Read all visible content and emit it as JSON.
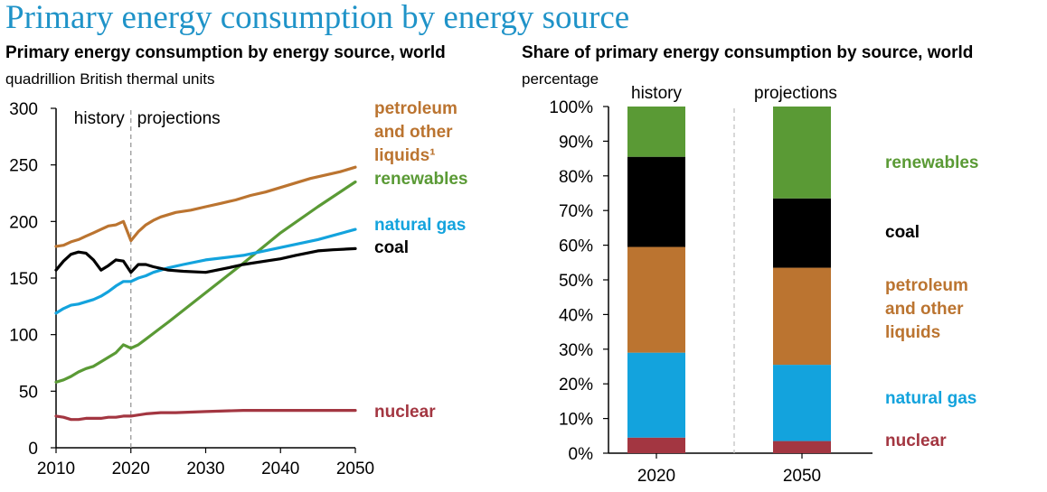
{
  "title": "Primary energy consumption by energy source",
  "colors": {
    "title": "#1f93c8",
    "petroleum": "#bb7430",
    "renewables": "#5a9a35",
    "natural_gas": "#13a3dd",
    "coal": "#000000",
    "nuclear": "#a33641",
    "divider": "#999999"
  },
  "left_chart": {
    "subtitle": "Primary energy consumption by energy source, world",
    "unit_label": "quadrillion British thermal units",
    "history_label": "history",
    "projections_label": "projections"
  },
  "right_chart": {
    "subtitle": "Share of primary energy consumption by source, world",
    "unit_label": "percentage",
    "history_label": "history",
    "projections_label": "projections"
  },
  "chart_data": [
    {
      "type": "line",
      "title": "Primary energy consumption by energy source, world",
      "ylabel": "quadrillion British thermal units",
      "xlim": [
        2010,
        2050
      ],
      "ylim": [
        0,
        300
      ],
      "xticks": [
        2010,
        2020,
        2030,
        2040,
        2050
      ],
      "yticks": [
        0,
        50,
        100,
        150,
        200,
        250,
        300
      ],
      "divider_x": 2020,
      "grid": false,
      "legend": "right",
      "series": [
        {
          "key": "petroleum",
          "label_lines": [
            "petroleum",
            "and other",
            "liquids¹"
          ],
          "x": [
            2010,
            2011,
            2012,
            2013,
            2014,
            2015,
            2016,
            2017,
            2018,
            2019,
            2020,
            2021,
            2022,
            2023,
            2024,
            2025,
            2026,
            2027,
            2028,
            2030,
            2032,
            2034,
            2036,
            2038,
            2040,
            2042,
            2044,
            2046,
            2048,
            2050
          ],
          "y": [
            178,
            179,
            182,
            184,
            187,
            190,
            193,
            196,
            197,
            200,
            183,
            191,
            197,
            201,
            204,
            206,
            208,
            209,
            210,
            213,
            216,
            219,
            223,
            226,
            230,
            234,
            238,
            241,
            244,
            248
          ]
        },
        {
          "key": "renewables",
          "label_lines": [
            "renewables"
          ],
          "x": [
            2010,
            2011,
            2012,
            2013,
            2014,
            2015,
            2016,
            2017,
            2018,
            2019,
            2020,
            2021,
            2022,
            2023,
            2024,
            2025,
            2030,
            2035,
            2040,
            2045,
            2050
          ],
          "y": [
            58,
            60,
            63,
            67,
            70,
            72,
            76,
            80,
            84,
            91,
            88,
            91,
            96,
            101,
            106,
            111,
            137,
            163,
            190,
            213,
            235
          ]
        },
        {
          "key": "natural_gas",
          "label_lines": [
            "natural gas"
          ],
          "x": [
            2010,
            2011,
            2012,
            2013,
            2014,
            2015,
            2016,
            2017,
            2018,
            2019,
            2020,
            2021,
            2022,
            2023,
            2025,
            2027,
            2030,
            2035,
            2040,
            2045,
            2050
          ],
          "y": [
            119,
            123,
            126,
            127,
            129,
            131,
            134,
            138,
            143,
            147,
            147,
            150,
            152,
            155,
            159,
            162,
            166,
            170,
            177,
            184,
            193
          ]
        },
        {
          "key": "coal",
          "label_lines": [
            "coal"
          ],
          "x": [
            2010,
            2011,
            2012,
            2013,
            2014,
            2015,
            2016,
            2017,
            2018,
            2019,
            2020,
            2021,
            2022,
            2023,
            2025,
            2027,
            2030,
            2033,
            2035,
            2038,
            2040,
            2042,
            2045,
            2047,
            2050
          ],
          "y": [
            157,
            165,
            171,
            173,
            172,
            166,
            157,
            161,
            166,
            165,
            155,
            162,
            162,
            160,
            157,
            156,
            155,
            159,
            162,
            165,
            167,
            170,
            174,
            175,
            176
          ]
        },
        {
          "key": "nuclear",
          "label_lines": [
            "nuclear"
          ],
          "x": [
            2010,
            2011,
            2012,
            2013,
            2014,
            2015,
            2016,
            2017,
            2018,
            2019,
            2020,
            2021,
            2022,
            2024,
            2026,
            2030,
            2035,
            2040,
            2045,
            2050
          ],
          "y": [
            28,
            27,
            25,
            25,
            26,
            26,
            26,
            27,
            27,
            28,
            28,
            29,
            30,
            31,
            31,
            32,
            33,
            33,
            33,
            33
          ]
        }
      ]
    },
    {
      "type": "bar",
      "stacked": true,
      "title": "Share of primary energy consumption by source, world",
      "ylabel": "percentage",
      "ylim": [
        0,
        100
      ],
      "yticks": [
        "0%",
        "10%",
        "20%",
        "30%",
        "40%",
        "50%",
        "60%",
        "70%",
        "80%",
        "90%",
        "100%"
      ],
      "categories": [
        "2020",
        "2050"
      ],
      "grid": false,
      "legend": "right",
      "series": [
        {
          "key": "nuclear",
          "label_lines": [
            "nuclear"
          ],
          "values": [
            4.5,
            3.5
          ]
        },
        {
          "key": "natural_gas",
          "label_lines": [
            "natural gas"
          ],
          "values": [
            24.5,
            22
          ]
        },
        {
          "key": "petroleum",
          "label_lines": [
            "petroleum",
            "and other",
            "liquids"
          ],
          "values": [
            30.5,
            28
          ]
        },
        {
          "key": "coal",
          "label_lines": [
            "coal"
          ],
          "values": [
            26,
            20
          ]
        },
        {
          "key": "renewables",
          "label_lines": [
            "renewables"
          ],
          "values": [
            14.5,
            26.5
          ]
        }
      ]
    }
  ]
}
